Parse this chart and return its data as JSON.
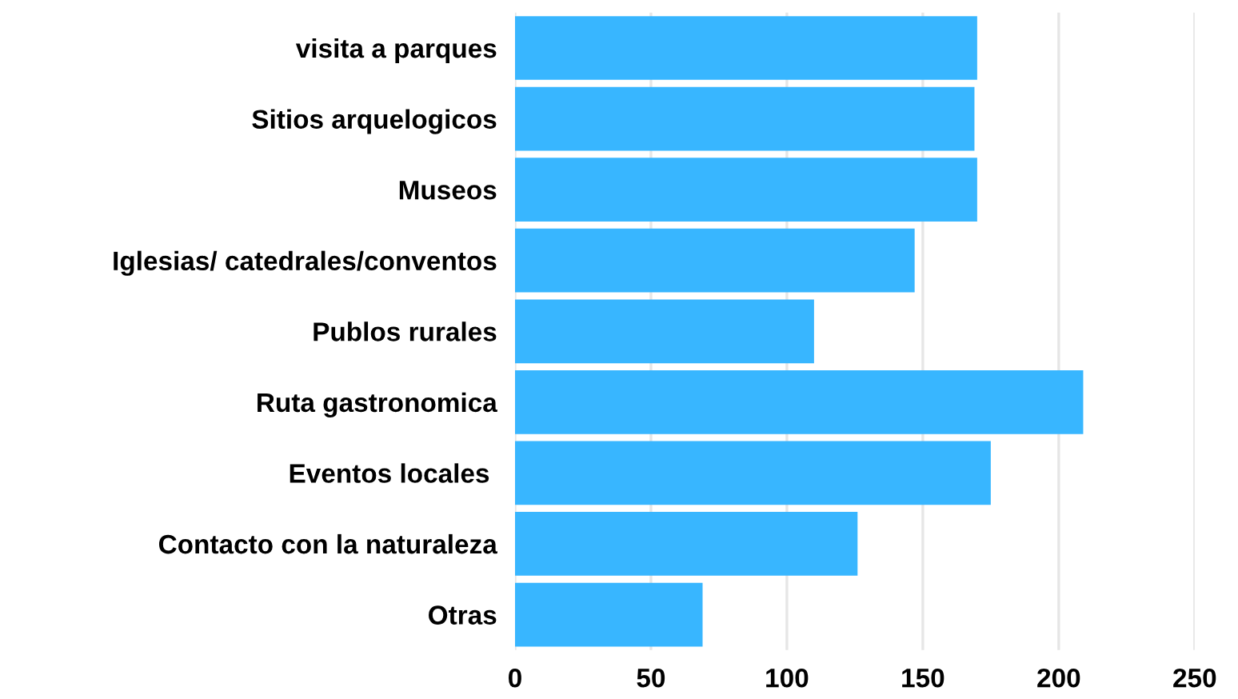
{
  "chart_data": {
    "type": "bar",
    "orientation": "horizontal",
    "categories": [
      "visita a parques",
      "Sitios arquelogicos",
      "Museos",
      "Iglesias/ catedrales/conventos",
      "Publos rurales",
      "Ruta gastronomica",
      "Eventos locales ",
      "Contacto con la naturaleza",
      "Otras"
    ],
    "values": [
      170,
      169,
      170,
      147,
      110,
      209,
      175,
      126,
      69
    ],
    "color": "#38b6ff",
    "xlim": [
      0,
      250
    ],
    "xticks": [
      0,
      50,
      100,
      150,
      200,
      250
    ],
    "grid": "x"
  }
}
